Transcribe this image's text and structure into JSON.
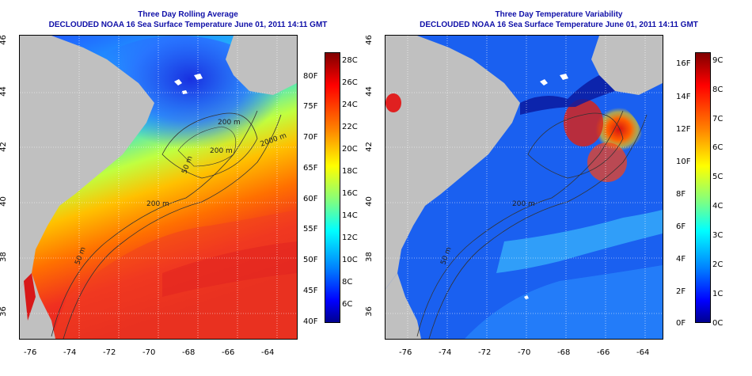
{
  "left_panel": {
    "title_line1": "Three Day Rolling Average",
    "title_line2": "DECLOUDED NOAA 16 Sea Surface Temperature June 01, 2011 14:11 GMT",
    "contour_labels": [
      "200 m",
      "50 m",
      "2000 m",
      "200 m",
      "50 m",
      "200 m"
    ],
    "colorbar_celsius": [
      "28C",
      "26C",
      "24C",
      "22C",
      "20C",
      "18C",
      "16C",
      "14C",
      "12C",
      "10C",
      "8C",
      "6C"
    ],
    "colorbar_fahrenheit": [
      "80F",
      "75F",
      "70F",
      "65F",
      "60F",
      "55F",
      "50F",
      "45F",
      "40F"
    ],
    "colormap": "jet",
    "range_celsius": [
      4,
      29
    ]
  },
  "right_panel": {
    "title_line1": "Three Day Temperature Variability",
    "title_line2": "DECLOUDED NOAA 16 Sea Surface Temperature June 01, 2011 14:11 GMT",
    "contour_labels": [
      "200 m",
      "50 m"
    ],
    "colorbar_fahrenheit": [
      "16F",
      "14F",
      "12F",
      "10F",
      "8F",
      "6F",
      "4F",
      "2F",
      "0F"
    ],
    "colorbar_celsius": [
      "9C",
      "8C",
      "7C",
      "6C",
      "5C",
      "4C",
      "3C",
      "2C",
      "1C",
      "0C"
    ],
    "colormap": "jet",
    "range_celsius": [
      0,
      9.4
    ]
  },
  "axes": {
    "x_ticks": [
      "-76",
      "-74",
      "-72",
      "-70",
      "-68",
      "-66",
      "-64"
    ],
    "y_ticks": [
      "46",
      "44",
      "42",
      "40",
      "38",
      "36"
    ],
    "x_range": [
      -77,
      -63
    ],
    "y_range": [
      35,
      46
    ],
    "grid": "dotted white"
  },
  "colors": {
    "land": "#c0c0c0",
    "title": "#1010a8",
    "contour": "#333333"
  }
}
